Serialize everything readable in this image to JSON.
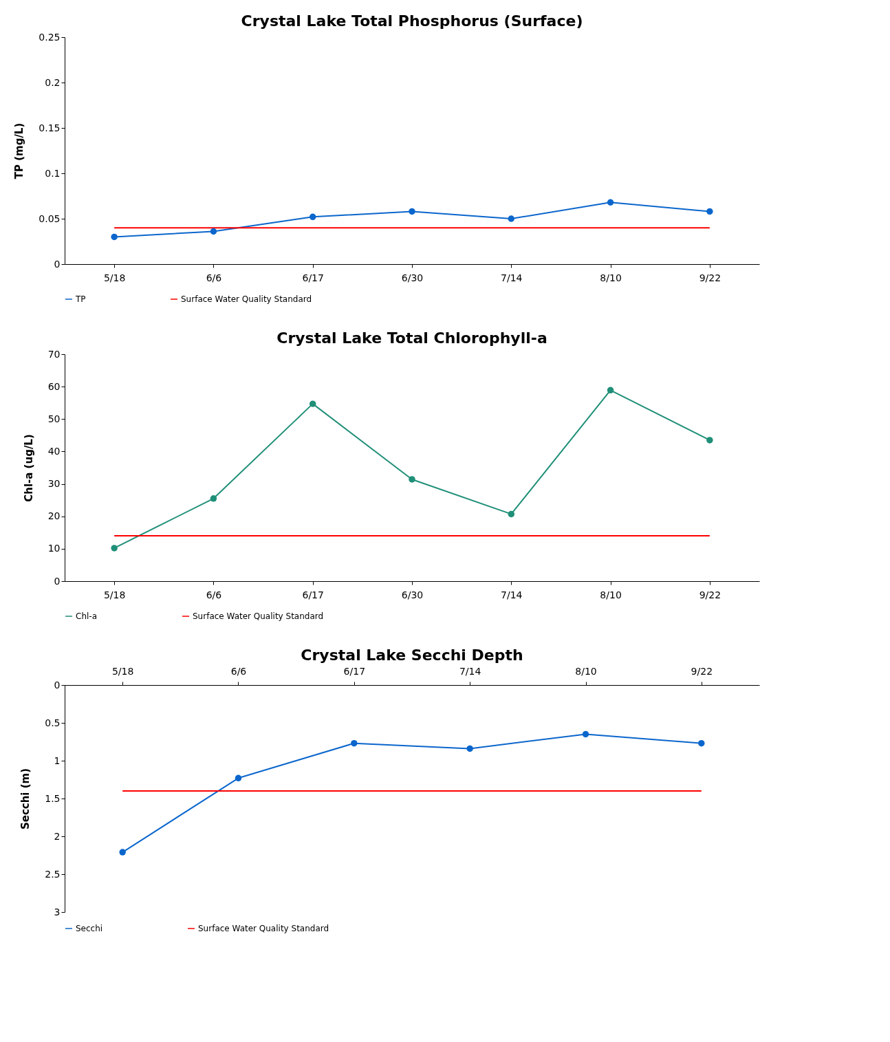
{
  "chart_data": [
    {
      "type": "line",
      "title": "Crystal Lake Total Phosphorus (Surface)",
      "ylabel": "TP (mg/L)",
      "categories": [
        "5/18",
        "6/6",
        "6/17",
        "6/30",
        "7/14",
        "8/10",
        "9/22"
      ],
      "series": [
        {
          "name": "TP",
          "color": "#0b66cc",
          "marker": "circle",
          "values": [
            0.03,
            0.036,
            0.052,
            0.058,
            0.05,
            0.068,
            0.058
          ]
        },
        {
          "name": "Surface Water Quality Standard",
          "color": "#ff0000",
          "marker": "none",
          "values": [
            0.04,
            0.04,
            0.04,
            0.04,
            0.04,
            0.04,
            0.04
          ]
        }
      ],
      "ylim": [
        0,
        0.25
      ],
      "yticks": [
        0,
        0.05,
        0.1,
        0.15,
        0.2,
        0.25
      ],
      "grid": false,
      "legend": "bottom"
    },
    {
      "type": "line",
      "title": "Crystal Lake Total Chlorophyll-a",
      "ylabel": "Chl-a (ug/L)",
      "categories": [
        "5/18",
        "6/6",
        "6/17",
        "6/30",
        "7/14",
        "8/10",
        "9/22"
      ],
      "series": [
        {
          "name": "Chl-a",
          "color": "#1f8f78",
          "marker": "circle",
          "values": [
            10.2,
            25.5,
            54.7,
            31.4,
            20.7,
            58.9,
            43.5
          ]
        },
        {
          "name": "Surface Water Quality Standard",
          "color": "#ff0000",
          "marker": "none",
          "values": [
            14,
            14,
            14,
            14,
            14,
            14,
            14
          ]
        }
      ],
      "ylim": [
        0,
        70
      ],
      "yticks": [
        0,
        10,
        20,
        30,
        40,
        50,
        60,
        70
      ],
      "grid": false,
      "legend": "bottom"
    },
    {
      "type": "line",
      "title": "Crystal Lake Secchi Depth",
      "ylabel": "Secchi (m)",
      "categories": [
        "5/18",
        "6/6",
        "6/17",
        "7/14",
        "8/10",
        "9/22"
      ],
      "series": [
        {
          "name": "Secchi",
          "color": "#0b66cc",
          "marker": "circle",
          "values": [
            2.21,
            1.23,
            0.77,
            0.84,
            0.65,
            0.77
          ]
        },
        {
          "name": "Surface Water Quality Standard",
          "color": "#ff0000",
          "marker": "none",
          "values": [
            1.4,
            1.4,
            1.4,
            1.4,
            1.4,
            1.4
          ]
        }
      ],
      "ylim": [
        3,
        0
      ],
      "yticks": [
        0,
        0.5,
        1,
        1.5,
        2,
        2.5,
        3
      ],
      "grid": false,
      "legend": "bottom"
    }
  ]
}
